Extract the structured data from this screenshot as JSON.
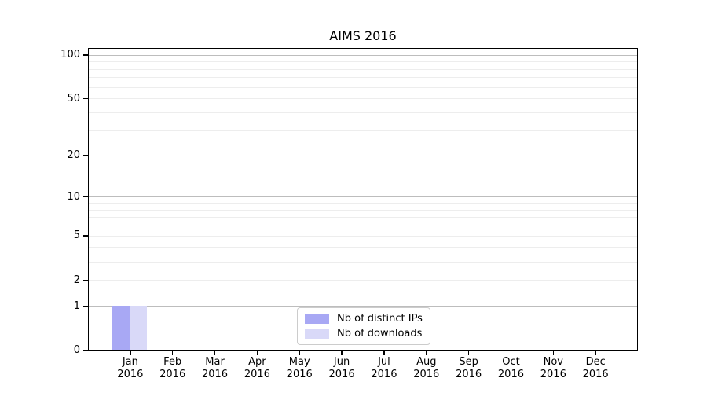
{
  "chart_data": {
    "type": "bar",
    "title": "AIMS 2016",
    "categories": [
      "Jan",
      "Feb",
      "Mar",
      "Apr",
      "May",
      "Jun",
      "Jul",
      "Aug",
      "Sep",
      "Oct",
      "Nov",
      "Dec"
    ],
    "category_year": "2016",
    "series": [
      {
        "name": "Nb of distinct IPs",
        "color": "#a8a8f4",
        "values": [
          1,
          0,
          0,
          0,
          0,
          0,
          0,
          0,
          0,
          0,
          0,
          0
        ]
      },
      {
        "name": "Nb of downloads",
        "color": "#d9d9f8",
        "values": [
          1,
          0,
          0,
          0,
          0,
          0,
          0,
          0,
          0,
          0,
          0,
          0
        ]
      }
    ],
    "yscale": "log1p",
    "ylim": [
      0,
      112
    ],
    "ytick_labels": [
      "0",
      "1",
      "2",
      "5",
      "10",
      "20",
      "50",
      "100"
    ],
    "ytick_values": [
      0,
      1,
      2,
      5,
      10,
      20,
      50,
      100
    ],
    "grid": {
      "on": true,
      "major_values": [
        1,
        10,
        100
      ],
      "minor_values": [
        2,
        3,
        4,
        5,
        6,
        7,
        8,
        9,
        20,
        30,
        40,
        50,
        60,
        70,
        80,
        90
      ],
      "major_color": "#bdbdbd",
      "minor_color": "#ededed"
    },
    "legend": {
      "position": "lower center"
    },
    "axis_color": "#000000",
    "background": "#ffffff"
  }
}
